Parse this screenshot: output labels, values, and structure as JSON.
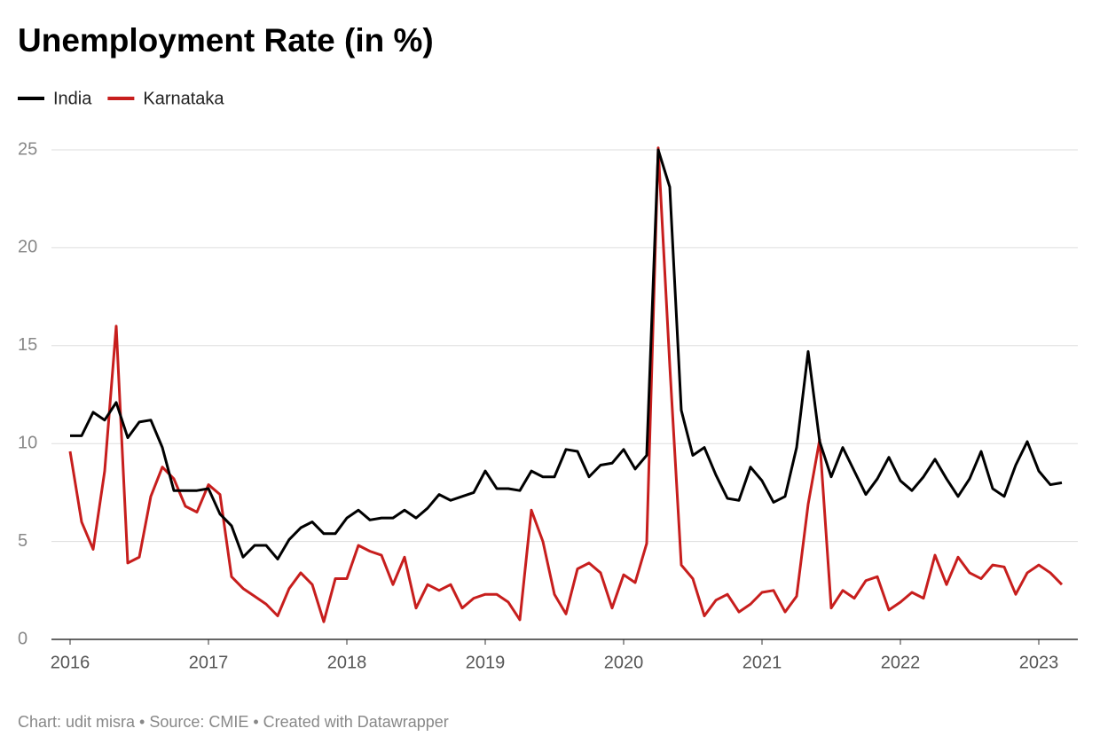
{
  "chart_data": {
    "type": "line",
    "title": "Unemployment Rate (in %)",
    "source": "Chart: udit misra • Source: CMIE • Created with Datawrapper",
    "categories": [
      "2016",
      null,
      null,
      null,
      null,
      null,
      null,
      null,
      null,
      null,
      null,
      null,
      "2017",
      null,
      null,
      null,
      null,
      null,
      null,
      null,
      null,
      null,
      null,
      null,
      "2018",
      null,
      null,
      null,
      null,
      null,
      null,
      null,
      null,
      null,
      null,
      null,
      "2019",
      null,
      null,
      null,
      null,
      null,
      null,
      null,
      null,
      null,
      null,
      null,
      "2020",
      null,
      null,
      null,
      null,
      null,
      null,
      null,
      null,
      null,
      null,
      null,
      "2021",
      null,
      null,
      null,
      null,
      null,
      null,
      null,
      null,
      null,
      null,
      null,
      "2022",
      null,
      null,
      null,
      null,
      null,
      null,
      null,
      null,
      null,
      null,
      null,
      "2023",
      null,
      null
    ],
    "series": [
      {
        "name": "India",
        "color": "#000000",
        "values": [
          10.4,
          10.4,
          11.6,
          11.2,
          12.1,
          10.3,
          11.1,
          11.2,
          9.8,
          7.6,
          7.6,
          7.6,
          7.7,
          6.4,
          5.8,
          4.2,
          4.8,
          4.8,
          4.1,
          5.1,
          5.7,
          6.0,
          5.4,
          5.4,
          6.2,
          6.6,
          6.1,
          6.2,
          6.2,
          6.6,
          6.2,
          6.7,
          7.4,
          7.1,
          7.3,
          7.5,
          8.6,
          7.7,
          7.7,
          7.6,
          8.6,
          8.3,
          8.3,
          9.7,
          9.6,
          8.3,
          8.9,
          9.0,
          9.7,
          8.7,
          9.4,
          25.0,
          23.1,
          11.7,
          9.4,
          9.8,
          8.4,
          7.2,
          7.1,
          8.8,
          8.1,
          7.0,
          7.3,
          9.8,
          14.7,
          10.1,
          8.3,
          9.8,
          8.6,
          7.4,
          8.2,
          9.3,
          8.1,
          7.6,
          8.3,
          9.2,
          8.2,
          7.3,
          8.2,
          9.6,
          7.7,
          7.3,
          8.9,
          10.1,
          8.6,
          7.9,
          8.0
        ]
      },
      {
        "name": "Karnataka",
        "color": "#c71e1d",
        "values": [
          9.6,
          6.0,
          4.6,
          8.6,
          16.0,
          3.9,
          4.2,
          7.3,
          8.8,
          8.2,
          6.8,
          6.5,
          7.9,
          7.4,
          3.2,
          2.6,
          2.2,
          1.8,
          1.2,
          2.6,
          3.4,
          2.8,
          0.9,
          3.1,
          3.1,
          4.8,
          4.5,
          4.3,
          2.8,
          4.2,
          1.6,
          2.8,
          2.5,
          2.8,
          1.6,
          2.1,
          2.3,
          2.3,
          1.9,
          1.0,
          6.6,
          5.0,
          2.3,
          1.3,
          3.6,
          3.9,
          3.4,
          1.6,
          3.3,
          2.9,
          4.9,
          25.1,
          14.0,
          3.8,
          3.1,
          1.2,
          2.0,
          2.3,
          1.4,
          1.8,
          2.4,
          2.5,
          1.4,
          2.2,
          6.9,
          10.2,
          1.6,
          2.5,
          2.1,
          3.0,
          3.2,
          1.5,
          1.9,
          2.4,
          2.1,
          4.3,
          2.8,
          4.2,
          3.4,
          3.1,
          3.8,
          3.7,
          2.3,
          3.4,
          3.8,
          3.4,
          2.8
        ]
      }
    ],
    "ylim": [
      0,
      25
    ],
    "yticks": [
      0,
      5,
      10,
      15,
      20,
      25
    ],
    "grid": true
  }
}
